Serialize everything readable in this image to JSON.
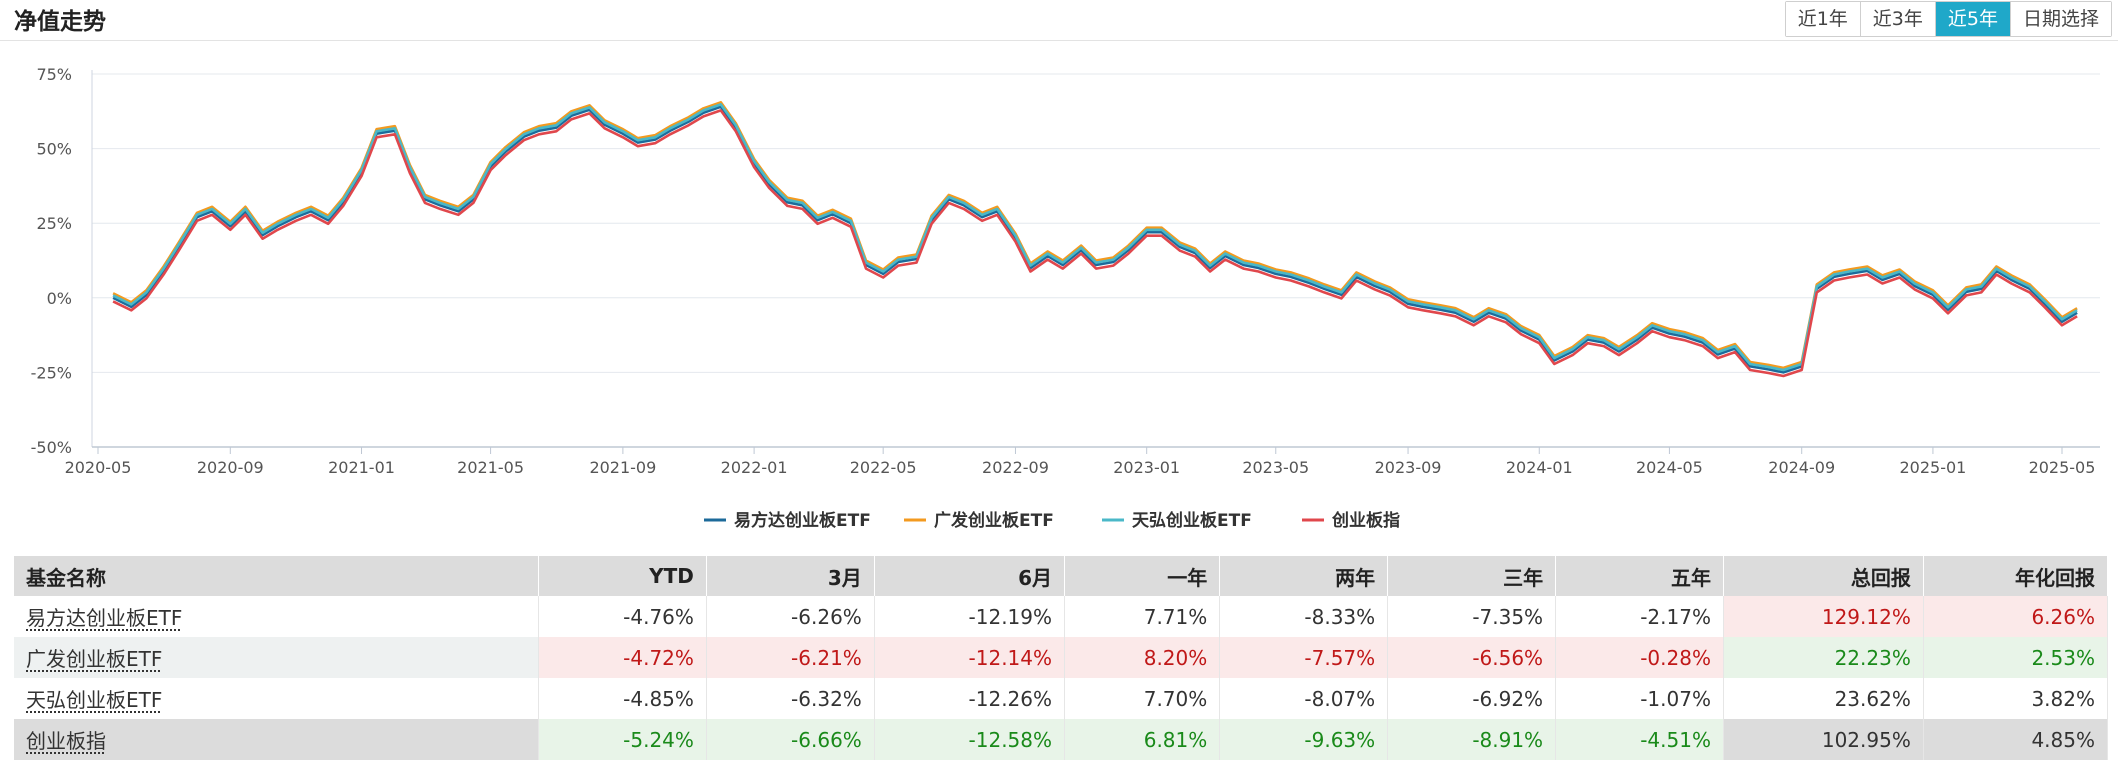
{
  "header": {
    "title": "净值走势",
    "ranges": [
      "近1年",
      "近3年",
      "近5年",
      "日期选择"
    ],
    "active_range": "近5年"
  },
  "colors": {
    "accent": "#1fa8c9",
    "positive_text": "#c01818",
    "negative_text": "#1a8a1a"
  },
  "chart_data": {
    "type": "line",
    "x_ticks": [
      "2020-05",
      "2020-09",
      "2021-01",
      "2021-05",
      "2021-09",
      "2022-01",
      "2022-05",
      "2022-09",
      "2023-01",
      "2023-05",
      "2023-09",
      "2024-01",
      "2024-05",
      "2024-09",
      "2025-01",
      "2025-05"
    ],
    "y_ticks": [
      "75%",
      "50%",
      "25%",
      "0%",
      "-25%",
      "-50%"
    ],
    "ylim": [
      -50,
      75
    ],
    "grid": true,
    "legend_position": "bottom",
    "x": [
      "2020-05-15",
      "2020-06-01",
      "2020-06-15",
      "2020-07-01",
      "2020-07-15",
      "2020-08-01",
      "2020-08-15",
      "2020-09-01",
      "2020-09-15",
      "2020-10-01",
      "2020-10-15",
      "2020-11-01",
      "2020-11-15",
      "2020-12-01",
      "2020-12-15",
      "2021-01-01",
      "2021-01-15",
      "2021-02-01",
      "2021-02-15",
      "2021-03-01",
      "2021-03-15",
      "2021-04-01",
      "2021-04-15",
      "2021-05-01",
      "2021-05-15",
      "2021-06-01",
      "2021-06-15",
      "2021-07-01",
      "2021-07-15",
      "2021-08-01",
      "2021-08-15",
      "2021-09-01",
      "2021-09-15",
      "2021-10-01",
      "2021-10-15",
      "2021-11-01",
      "2021-11-15",
      "2021-12-01",
      "2021-12-15",
      "2022-01-01",
      "2022-01-15",
      "2022-02-01",
      "2022-02-15",
      "2022-03-01",
      "2022-03-15",
      "2022-04-01",
      "2022-04-15",
      "2022-05-01",
      "2022-05-15",
      "2022-06-01",
      "2022-06-15",
      "2022-07-01",
      "2022-07-15",
      "2022-08-01",
      "2022-08-15",
      "2022-09-01",
      "2022-09-15",
      "2022-10-01",
      "2022-10-15",
      "2022-11-01",
      "2022-11-15",
      "2022-12-01",
      "2022-12-15",
      "2023-01-01",
      "2023-01-15",
      "2023-02-01",
      "2023-02-15",
      "2023-03-01",
      "2023-03-15",
      "2023-04-01",
      "2023-04-15",
      "2023-05-01",
      "2023-05-15",
      "2023-06-01",
      "2023-06-15",
      "2023-07-01",
      "2023-07-15",
      "2023-08-01",
      "2023-08-15",
      "2023-09-01",
      "2023-09-15",
      "2023-10-01",
      "2023-10-15",
      "2023-11-01",
      "2023-11-15",
      "2023-12-01",
      "2023-12-15",
      "2024-01-01",
      "2024-01-15",
      "2024-02-01",
      "2024-02-15",
      "2024-03-01",
      "2024-03-15",
      "2024-04-01",
      "2024-04-15",
      "2024-05-01",
      "2024-05-15",
      "2024-06-01",
      "2024-06-15",
      "2024-07-01",
      "2024-07-15",
      "2024-08-01",
      "2024-08-15",
      "2024-09-01",
      "2024-09-15",
      "2024-10-01",
      "2024-10-15",
      "2024-11-01",
      "2024-11-15",
      "2024-12-01",
      "2024-12-15",
      "2025-01-01",
      "2025-01-15",
      "2025-02-01",
      "2025-02-15",
      "2025-03-01",
      "2025-03-15",
      "2025-04-01",
      "2025-04-15",
      "2025-05-01",
      "2025-05-15"
    ],
    "base_values": [
      0,
      -3,
      1,
      9,
      17,
      27,
      29,
      24,
      29,
      21,
      24,
      27,
      29,
      26,
      32,
      42,
      55,
      56,
      43,
      33,
      31,
      29,
      33,
      44,
      49,
      54,
      56,
      57,
      61,
      63,
      58,
      55,
      52,
      53,
      56,
      59,
      62,
      64,
      57,
      45,
      38,
      32,
      31,
      26,
      28,
      25,
      11,
      8,
      12,
      13,
      26,
      33,
      31,
      27,
      29,
      20,
      10,
      14,
      11,
      16,
      11,
      12,
      16,
      22,
      22,
      17,
      15,
      10,
      14,
      11,
      10,
      8,
      7,
      5,
      3,
      1,
      7,
      4,
      2,
      -2,
      -3,
      -4,
      -5,
      -8,
      -5,
      -7,
      -11,
      -14,
      -21,
      -18,
      -14,
      -15,
      -18,
      -14,
      -10,
      -12,
      -13,
      -15,
      -19,
      -17,
      -23,
      -24,
      -25,
      -23,
      3,
      7,
      8,
      9,
      6,
      8,
      4,
      1,
      -4,
      2,
      3,
      9,
      6,
      3,
      -2,
      -8,
      -5
    ],
    "series": [
      {
        "name": "易方达创业板ETF",
        "color": "#1c6a9a",
        "offset": 0
      },
      {
        "name": "广发创业板ETF",
        "color": "#f39a1f",
        "offset": 1.5
      },
      {
        "name": "天弘创业板ETF",
        "color": "#4ab8c8",
        "offset": 0.8
      },
      {
        "name": "创业板指",
        "color": "#e0474c",
        "offset": -1.2
      }
    ]
  },
  "table": {
    "headers": [
      "基金名称",
      "YTD",
      "3月",
      "6月",
      "一年",
      "两年",
      "三年",
      "五年",
      "总回报",
      "年化回报"
    ],
    "rows": [
      {
        "name": "易方达创业板ETF",
        "values": [
          "-4.76%",
          "-6.26%",
          "-12.19%",
          "7.71%",
          "-8.33%",
          "-7.35%",
          "-2.17%",
          "129.12%",
          "6.26%"
        ]
      },
      {
        "name": "广发创业板ETF",
        "values": [
          "-4.72%",
          "-6.21%",
          "-12.14%",
          "8.20%",
          "-7.57%",
          "-6.56%",
          "-0.28%",
          "22.23%",
          "2.53%"
        ]
      },
      {
        "name": "天弘创业板ETF",
        "values": [
          "-4.85%",
          "-6.32%",
          "-12.26%",
          "7.70%",
          "-8.07%",
          "-6.92%",
          "-1.07%",
          "23.62%",
          "3.82%"
        ]
      },
      {
        "name": "创业板指",
        "values": [
          "-5.24%",
          "-6.66%",
          "-12.58%",
          "6.81%",
          "-9.63%",
          "-8.91%",
          "-4.51%",
          "102.95%",
          "4.85%"
        ]
      }
    ]
  }
}
